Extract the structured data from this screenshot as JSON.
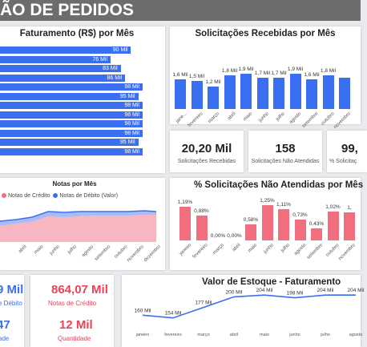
{
  "header": {
    "title": "ÃO DE PEDIDOS"
  },
  "faturamento": {
    "title": "Faturamento (R$) por Mês",
    "bars": [
      {
        "label": "90 Mil",
        "value": 90
      },
      {
        "label": "76 Mil",
        "value": 76
      },
      {
        "label": "83 Mil",
        "value": 83
      },
      {
        "label": "86 Mil",
        "value": 86
      },
      {
        "label": "98 Mil",
        "value": 98
      },
      {
        "label": "95 Mil",
        "value": 95
      },
      {
        "label": "98 Mil",
        "value": 98
      },
      {
        "label": "98 Mil",
        "value": 98
      },
      {
        "label": "98 Mil",
        "value": 98
      },
      {
        "label": "98 Mil",
        "value": 98
      },
      {
        "label": "95 Mil",
        "value": 95
      },
      {
        "label": "98 Mil",
        "value": 98
      }
    ]
  },
  "solicitacoes": {
    "title": "Solicitações Recebidas por Mês",
    "months": [
      "jane...",
      "fevereiro",
      "março",
      "abril",
      "maio",
      "junho",
      "julho",
      "agosto",
      "setembro",
      "outubro",
      "novembro"
    ],
    "values": [
      1.6,
      1.5,
      1.2,
      1.8,
      1.9,
      1.7,
      1.7,
      1.9,
      1.6,
      1.8,
      1.7
    ],
    "labels": [
      "1,6 Mil",
      "1,5 Mil",
      "1,2 Mil",
      "1,8 Mil",
      "1,9 Mil",
      "1,7 Mil",
      "1,7 Mil",
      "1,9 Mil",
      "1,6 Mil",
      "1,8 Mil",
      ""
    ]
  },
  "kpis": [
    {
      "value": "20,20 Mil",
      "label": "Solicitações Recebidas"
    },
    {
      "value": "158",
      "label": "Solicitações Não Atendidas"
    },
    {
      "value": "99,",
      "label": "% Solicitaç"
    }
  ],
  "notas": {
    "title": "Notas por Mês",
    "legend_credit": "Notas de Crédito",
    "legend_debit": "Notas de Débito (Valor)",
    "months": [
      "abril",
      "maio",
      "junho",
      "julho",
      "agosto",
      "setembro",
      "outubro",
      "novembro",
      "dezembro"
    ],
    "credit_color": "#f26d7e",
    "debit_color": "#3b6ff2"
  },
  "pct_nao_atendidas": {
    "title": "% Solicitações Não Atendidas por Mês",
    "months": [
      "janeiro",
      "fevereiro",
      "março",
      "abril",
      "maio",
      "junho",
      "julho",
      "agosto",
      "setembro",
      "outubro",
      "novembro"
    ],
    "values": [
      1.19,
      0.88,
      0.0,
      0.0,
      0.58,
      1.25,
      1.11,
      0.73,
      0.43,
      1.02,
      1.0
    ],
    "labels": [
      "1,19%",
      "0,88%",
      "0,00%",
      "0,00%",
      "0,58%",
      "1,25%",
      "1,11%",
      "0,73%",
      "0,43%",
      "1,02%",
      "1,"
    ]
  },
  "notas_totais": {
    "debit_value": "9 Mil",
    "debit_label": "e Débito",
    "credit_value": "864,07 Mil",
    "credit_label": "Notas de Crédito",
    "debit_qty": "47",
    "debit_qty_label": "ade",
    "credit_qty": "12 Mil",
    "credit_qty_label": "Quantidade"
  },
  "estoque": {
    "title": "Valor de Estoque - Faturamento",
    "months": [
      "janeiro",
      "fevereiro",
      "março",
      "abril",
      "maio",
      "junho",
      "julho",
      "agosto"
    ],
    "values": [
      160,
      154,
      177,
      200,
      204,
      198,
      204,
      204
    ],
    "labels": [
      "160 Mil",
      "154 Mil",
      "177 Mil",
      "200 Mil",
      "204 Mil",
      "198 Mil",
      "204 Mil",
      "204 Mil"
    ]
  }
}
